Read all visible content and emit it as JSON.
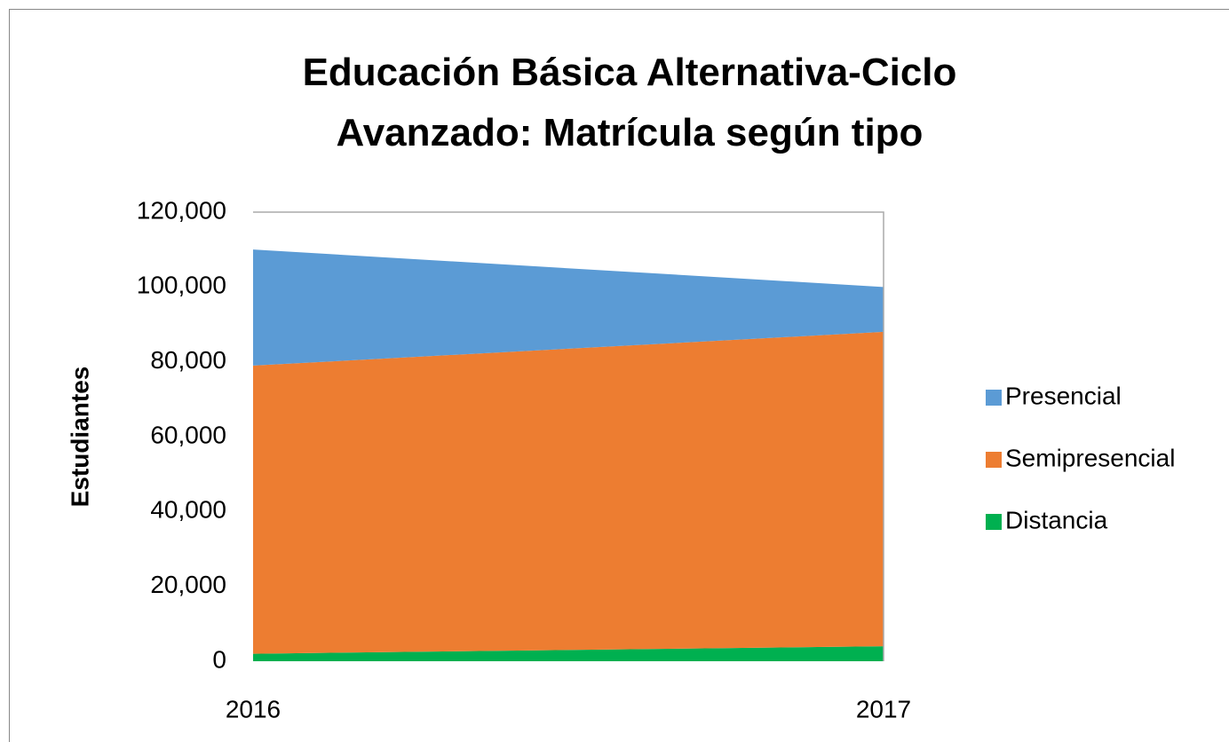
{
  "chart_data": {
    "type": "stacked_area",
    "title": "Educación Básica Alternativa-Ciclo Avanzado: Matrícula según tipo",
    "y_label": "Estudiantes",
    "categories": [
      "2016",
      "2017"
    ],
    "series": [
      {
        "name": "Distancia",
        "color": "#00b050",
        "values": [
          2000,
          4000
        ]
      },
      {
        "name": "Semipresencial",
        "color": "#ed7d31",
        "values": [
          77000,
          84000
        ]
      },
      {
        "name": "Presencial",
        "color": "#5b9bd5",
        "values": [
          31000,
          12000
        ]
      }
    ],
    "ylim": [
      0,
      120000
    ],
    "yticks": [
      0,
      {
        "value": 20000,
        "label": "20,000"
      },
      {
        "value": 40000,
        "label": "40,000"
      },
      {
        "value": 60000,
        "label": "60,000"
      },
      {
        "value": 80000,
        "label": "80,000"
      },
      {
        "value": 100000,
        "label": "100,000"
      },
      {
        "value": 120000,
        "label": "120,000"
      }
    ],
    "legend": "right"
  }
}
